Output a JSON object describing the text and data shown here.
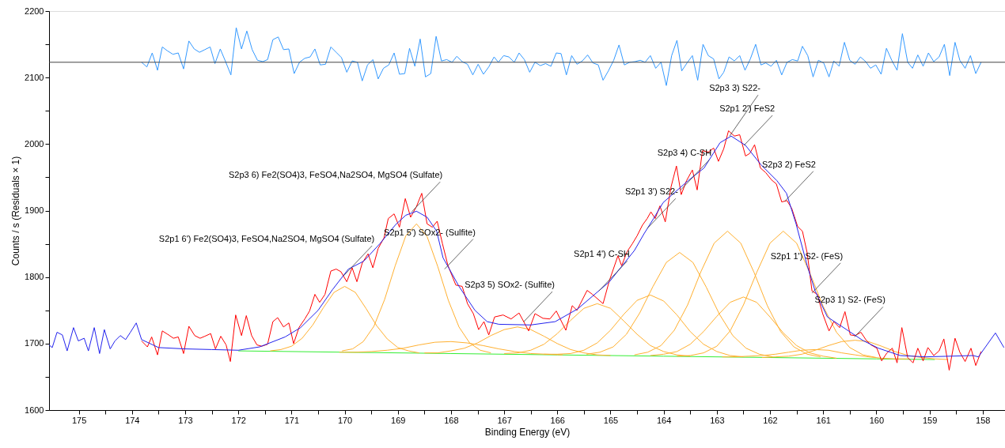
{
  "chart_data": {
    "type": "line",
    "xlabel": "Binding Energy (eV)",
    "ylabel": "Counts / s  (Residuals × 1)",
    "xlim": [
      175.56,
      157.58
    ],
    "ylim": [
      1600,
      2200
    ],
    "xticks": [
      175,
      {
        "value": 174.5,
        "label": null
      },
      174,
      {
        "value": 173.5,
        "label": null
      },
      173,
      {
        "value": 172.5,
        "label": null
      },
      172,
      {
        "value": 171.5,
        "label": null
      },
      171,
      {
        "value": 170.5,
        "label": null
      },
      170,
      {
        "value": 169.5,
        "label": null
      },
      169,
      {
        "value": 168.5,
        "label": null
      },
      168,
      {
        "value": 167.5,
        "label": null
      },
      167,
      {
        "value": 166.5,
        "label": null
      },
      166,
      {
        "value": 165.5,
        "label": null
      },
      165,
      {
        "value": 164.5,
        "label": null
      },
      164,
      {
        "value": 163.5,
        "label": null
      },
      163,
      {
        "value": 162.5,
        "label": null
      },
      162,
      {
        "value": 161.5,
        "label": null
      },
      161,
      {
        "value": 160.5,
        "label": null
      },
      160,
      {
        "value": 159.5,
        "label": null
      },
      159,
      {
        "value": 158.5,
        "label": null
      },
      158
    ],
    "yticks": [
      1600,
      {
        "value": 1650,
        "label": null
      },
      1700,
      {
        "value": 1750,
        "label": null
      },
      1800,
      {
        "value": 1850,
        "label": null
      },
      1900,
      {
        "value": 1950,
        "label": null
      },
      2000,
      {
        "value": 2050,
        "label": null
      },
      2100,
      {
        "value": 2150,
        "label": null
      },
      2200
    ],
    "grid": false,
    "marker": "none",
    "line_style": "solid",
    "ref_lines": [
      {
        "axis": "y",
        "value": 2123,
        "color": "#404040"
      }
    ],
    "series": [
      {
        "type": "line",
        "color": "#33ee33",
        "x": [
          172,
          170,
          168,
          166,
          164,
          162,
          160,
          158.9
        ],
        "values": [
          1689,
          1687,
          1685,
          1683,
          1681,
          1679,
          1677,
          1676
        ]
      },
      {
        "type": "line",
        "color": "#ffb030",
        "x": [
          171.4,
          171.2,
          171.0,
          170.8,
          170.6,
          170.4,
          170.2,
          170.0,
          169.8,
          169.6,
          169.4,
          169.2,
          169.0,
          168.8,
          168.6
        ],
        "values": [
          1689,
          1691,
          1696,
          1708,
          1728,
          1754,
          1777,
          1786,
          1777,
          1753,
          1727,
          1707,
          1694,
          1689,
          1686
        ]
      },
      {
        "type": "line",
        "color": "#ffb030",
        "x": [
          170.05,
          169.85,
          169.65,
          169.45,
          169.25,
          169.05,
          168.85,
          168.65,
          168.45,
          168.25,
          168.05,
          167.85,
          167.65,
          167.45,
          167.25
        ],
        "values": [
          1689,
          1692,
          1703,
          1726,
          1766,
          1817,
          1862,
          1880,
          1861,
          1816,
          1765,
          1725,
          1701,
          1690,
          1686
        ]
      },
      {
        "type": "line",
        "color": "#ffb030",
        "x": [
          170.1,
          169.8,
          169.5,
          169.2,
          168.9,
          168.6,
          168.3,
          168.0,
          167.7,
          167.4,
          167.1,
          166.8,
          166.5,
          166.2,
          165.9
        ],
        "values": [
          1687,
          1687,
          1688,
          1690,
          1693,
          1698,
          1702,
          1703,
          1701,
          1697,
          1692,
          1688,
          1685,
          1684,
          1683
        ]
      },
      {
        "type": "line",
        "color": "#ffb030",
        "x": [
          168.5,
          168.25,
          168.0,
          167.75,
          167.5,
          167.25,
          167.0,
          166.75,
          166.5,
          166.25,
          166.0,
          165.75,
          165.5,
          165.25,
          165.0
        ],
        "values": [
          1686,
          1686,
          1689,
          1693,
          1701,
          1712,
          1721,
          1725,
          1721,
          1711,
          1700,
          1691,
          1686,
          1683,
          1682
        ]
      },
      {
        "type": "line",
        "color": "#ffb030",
        "x": [
          167.0,
          166.75,
          166.5,
          166.25,
          166.0,
          165.75,
          165.5,
          165.25,
          165.0,
          164.75,
          164.5,
          164.25,
          164.0,
          163.75,
          163.5
        ],
        "values": [
          1685,
          1686,
          1690,
          1699,
          1715,
          1735,
          1753,
          1760,
          1753,
          1734,
          1714,
          1697,
          1688,
          1683,
          1681
        ]
      },
      {
        "type": "line",
        "color": "#ffb030",
        "x": [
          166.25,
          166.0,
          165.75,
          165.5,
          165.25,
          165.0,
          164.75,
          164.5,
          164.25,
          164.0,
          163.75,
          163.5,
          163.25,
          163.0,
          162.75,
          162.5
        ],
        "values": [
          1684,
          1684,
          1685,
          1690,
          1701,
          1720,
          1744,
          1765,
          1773,
          1764,
          1743,
          1718,
          1699,
          1688,
          1682,
          1680
        ]
      },
      {
        "type": "line",
        "color": "#ffb030",
        "x": [
          165.45,
          165.2,
          164.95,
          164.7,
          164.45,
          164.2,
          163.95,
          163.7,
          163.45,
          163.2,
          162.95,
          162.7,
          162.45,
          162.2,
          161.95
        ],
        "values": [
          1684,
          1687,
          1695,
          1714,
          1746,
          1786,
          1822,
          1837,
          1822,
          1785,
          1744,
          1712,
          1693,
          1684,
          1680
        ]
      },
      {
        "type": "line",
        "color": "#ffb030",
        "x": [
          164.55,
          164.3,
          164.05,
          163.8,
          163.55,
          163.3,
          163.05,
          162.8,
          162.55,
          162.3,
          162.05,
          161.8,
          161.55,
          161.3,
          161.05
        ],
        "values": [
          1683,
          1687,
          1697,
          1720,
          1758,
          1808,
          1851,
          1869,
          1851,
          1807,
          1757,
          1718,
          1695,
          1684,
          1680
        ]
      },
      {
        "type": "line",
        "color": "#ffb030",
        "x": [
          164.25,
          164.0,
          163.75,
          163.5,
          163.25,
          163.0,
          162.75,
          162.5,
          162.25,
          162.0,
          161.75,
          161.5,
          161.25,
          161.0,
          160.75
        ],
        "values": [
          1682,
          1684,
          1688,
          1699,
          1718,
          1741,
          1762,
          1770,
          1762,
          1740,
          1716,
          1697,
          1686,
          1681,
          1678
        ]
      },
      {
        "type": "line",
        "color": "#ffb030",
        "x": [
          163.75,
          163.5,
          163.25,
          163.0,
          162.75,
          162.5,
          162.25,
          162.0,
          161.75,
          161.5,
          161.25,
          161.0,
          160.75,
          160.5,
          160.25,
          160.0
        ],
        "values": [
          1681,
          1682,
          1686,
          1696,
          1719,
          1758,
          1807,
          1851,
          1869,
          1851,
          1806,
          1756,
          1717,
          1694,
          1683,
          1679
        ]
      },
      {
        "type": "line",
        "color": "#ffb030",
        "x": [
          162.9,
          162.65,
          162.4,
          162.15,
          161.9,
          161.65,
          161.4,
          161.15,
          160.9,
          160.65,
          160.4,
          160.15,
          159.9,
          159.65,
          159.4
        ],
        "values": [
          1680,
          1680,
          1681,
          1682,
          1684,
          1687,
          1690,
          1691,
          1690,
          1686,
          1683,
          1680,
          1678,
          1677,
          1677
        ]
      },
      {
        "type": "line",
        "color": "#ffb030",
        "x": [
          162.15,
          161.9,
          161.65,
          161.4,
          161.15,
          160.9,
          160.65,
          160.4,
          160.15,
          159.9,
          159.65,
          159.4,
          159.15,
          158.9,
          158.65
        ],
        "values": [
          1679,
          1680,
          1681,
          1684,
          1690,
          1697,
          1703,
          1705,
          1703,
          1696,
          1688,
          1682,
          1679,
          1677,
          1676
        ]
      },
      {
        "type": "line",
        "color": "#ff0000",
        "x": [
          173.82,
          173.71,
          173.63,
          173.52,
          173.43,
          173.33,
          173.22,
          173.13,
          173.03,
          172.93,
          172.82,
          172.72,
          172.63,
          172.52,
          172.43,
          172.33,
          172.23,
          172.15,
          172.05,
          171.94,
          171.85,
          171.75,
          171.65,
          171.56,
          171.45,
          171.35,
          171.26,
          171.15,
          171.05,
          170.96,
          170.86,
          170.75,
          170.66,
          170.56,
          170.47,
          170.37,
          170.26,
          170.16,
          170.07,
          169.96,
          169.86,
          169.77,
          169.67,
          169.56,
          169.47,
          169.37,
          169.26,
          169.18,
          169.07,
          168.97,
          168.86,
          168.76,
          168.65,
          168.55,
          168.45,
          168.35,
          168.26,
          168.16,
          168.06,
          167.91,
          167.79,
          167.69,
          167.58,
          167.48,
          167.38,
          167.29,
          167.18,
          167.02,
          166.87,
          166.72,
          166.54,
          166.42,
          166.27,
          166.14,
          166.02,
          165.84,
          165.72,
          165.63,
          165.44,
          165.34,
          165.14,
          165.02,
          164.86,
          164.79,
          164.69,
          164.59,
          164.5,
          164.4,
          164.31,
          164.24,
          164.16,
          164.07,
          163.97,
          163.86,
          163.76,
          163.67,
          163.57,
          163.46,
          163.37,
          163.27,
          163.16,
          163.06,
          162.97,
          162.87,
          162.78,
          162.67,
          162.57,
          162.46,
          162.38,
          162.29,
          162.18,
          162.08,
          161.97,
          161.88,
          161.78,
          161.68,
          161.59,
          161.48,
          161.39,
          161.3,
          161.21,
          161.11,
          161.01,
          160.89,
          160.8,
          160.69,
          160.59,
          160.49,
          160.4,
          160.29,
          160.19,
          160.1,
          159.99,
          159.9,
          159.8,
          159.7,
          159.61,
          159.52,
          159.41,
          159.31,
          159.22,
          159.12,
          159.03,
          158.92,
          158.82,
          158.73,
          158.63,
          158.52,
          158.43,
          158.33,
          158.22,
          158.13,
          158.03
        ],
        "values": [
          1704,
          1695,
          1710,
          1683,
          1719,
          1714,
          1708,
          1710,
          1685,
          1726,
          1712,
          1708,
          1711,
          1715,
          1692,
          1711,
          1698,
          1673,
          1743,
          1712,
          1742,
          1712,
          1698,
          1696,
          1699,
          1733,
          1739,
          1725,
          1731,
          1700,
          1724,
          1737,
          1749,
          1774,
          1762,
          1774,
          1809,
          1812,
          1808,
          1793,
          1814,
          1793,
          1821,
          1835,
          1814,
          1843,
          1859,
          1888,
          1895,
          1875,
          1918,
          1890,
          1906,
          1926,
          1880,
          1875,
          1884,
          1850,
          1818,
          1788,
          1786,
          1760,
          1745,
          1721,
          1733,
          1713,
          1740,
          1743,
          1737,
          1746,
          1719,
          1745,
          1738,
          1737,
          1749,
          1720,
          1757,
          1750,
          1780,
          1774,
          1760,
          1795,
          1832,
          1817,
          1838,
          1850,
          1862,
          1878,
          1888,
          1898,
          1888,
          1907,
          1883,
          1936,
          1967,
          1924,
          1945,
          1961,
          1931,
          1990,
          1988,
          1994,
          1974,
          1993,
          2020,
          2012,
          2014,
          1982,
          1986,
          1999,
          1964,
          1957,
          1946,
          1940,
          1913,
          1915,
          1903,
          1876,
          1869,
          1836,
          1779,
          1774,
          1745,
          1719,
          1733,
          1724,
          1748,
          1713,
          1712,
          1717,
          1705,
          1698,
          1693,
          1674,
          1686,
          1693,
          1671,
          1724,
          1679,
          1671,
          1693,
          1674,
          1694,
          1682,
          1689,
          1707,
          1660,
          1708,
          1687,
          1673,
          1693,
          1667,
          1688
        ]
      },
      {
        "type": "line",
        "color": "#2222ee",
        "x": [
          175.56,
          175.5,
          175.41,
          175.31,
          175.22,
          175.1,
          175.01,
          174.9,
          174.82,
          174.71,
          174.61,
          174.52,
          174.41,
          174.32,
          174.22,
          174.12,
          174.03,
          173.92,
          173.82,
          173.5,
          173.0,
          172.5,
          172.0,
          171.6,
          171.12,
          170.83,
          170.5,
          170.23,
          169.93,
          169.64,
          169.34,
          169.04,
          168.85,
          168.65,
          168.45,
          168.27,
          168.15,
          168.03,
          167.85,
          167.55,
          167.32,
          167.1,
          166.5,
          166.04,
          165.62,
          165.02,
          164.55,
          164.37,
          164.19,
          164.01,
          163.54,
          163.24,
          162.94,
          162.73,
          162.46,
          162.17,
          161.87,
          161.69,
          161.51,
          161.3,
          161.15,
          160.92,
          160.56,
          160.26,
          159.96,
          159.55,
          159.07,
          158.18,
          158.08,
          157.76,
          157.6
        ],
        "values": [
          1698,
          1694,
          1717,
          1713,
          1689,
          1724,
          1704,
          1708,
          1689,
          1724,
          1685,
          1721,
          1692,
          1704,
          1712,
          1706,
          1717,
          1731,
          1706,
          1694,
          1692,
          1691,
          1690,
          1695,
          1710,
          1724,
          1750,
          1781,
          1812,
          1824,
          1850,
          1879,
          1893,
          1899,
          1890,
          1869,
          1829,
          1812,
          1786,
          1750,
          1733,
          1729,
          1728,
          1733,
          1752,
          1793,
          1840,
          1865,
          1888,
          1912,
          1945,
          1964,
          2002,
          2012,
          1998,
          1969,
          1945,
          1926,
          1880,
          1817,
          1779,
          1740,
          1721,
          1705,
          1693,
          1682,
          1680,
          1682,
          1680,
          1716,
          1694
        ]
      },
      {
        "type": "line",
        "color": "#3399ff",
        "x": [
          173.82,
          173.72,
          173.62,
          173.52,
          173.43,
          173.33,
          173.23,
          173.13,
          173.03,
          172.93,
          172.83,
          172.73,
          172.63,
          172.53,
          172.44,
          172.34,
          172.24,
          172.14,
          172.04,
          171.94,
          171.84,
          171.74,
          171.64,
          171.54,
          171.45,
          171.35,
          171.25,
          171.15,
          171.05,
          170.95,
          170.85,
          170.75,
          170.65,
          170.56,
          170.46,
          170.36,
          170.26,
          170.16,
          170.06,
          169.96,
          169.86,
          169.76,
          169.67,
          169.57,
          169.47,
          169.37,
          169.27,
          169.17,
          169.07,
          168.97,
          168.87,
          168.78,
          168.68,
          168.58,
          168.48,
          168.38,
          168.28,
          168.18,
          168.08,
          167.98,
          167.89,
          167.79,
          167.69,
          167.59,
          167.49,
          167.39,
          167.29,
          167.19,
          167.11,
          167.01,
          166.91,
          166.81,
          166.72,
          166.62,
          166.52,
          166.42,
          166.32,
          166.22,
          166.12,
          166.02,
          165.93,
          165.83,
          165.73,
          165.63,
          165.53,
          165.43,
          165.33,
          165.23,
          165.14,
          165.04,
          164.94,
          164.84,
          164.74,
          164.64,
          164.54,
          164.44,
          164.35,
          164.25,
          164.15,
          164.05,
          163.95,
          163.85,
          163.75,
          163.66,
          163.56,
          163.46,
          163.36,
          163.26,
          163.16,
          163.06,
          162.96,
          162.87,
          162.77,
          162.67,
          162.57,
          162.47,
          162.37,
          162.27,
          162.17,
          162.08,
          161.98,
          161.88,
          161.78,
          161.68,
          161.58,
          161.48,
          161.39,
          161.29,
          161.19,
          161.09,
          160.99,
          160.89,
          160.8,
          160.7,
          160.6,
          160.5,
          160.4,
          160.3,
          160.2,
          160.11,
          160.01,
          159.91,
          159.81,
          159.71,
          159.61,
          159.51,
          159.41,
          159.32,
          159.22,
          159.12,
          159.02,
          158.92,
          158.82,
          158.72,
          158.62,
          158.52,
          158.43,
          158.33,
          158.23,
          158.13,
          158.03
        ],
        "values": [
          2123,
          2116,
          2137,
          2111,
          2146,
          2140,
          2135,
          2137,
          2113,
          2155,
          2143,
          2138,
          2142,
          2146,
          2121,
          2143,
          2124,
          2104,
          2175,
          2143,
          2170,
          2142,
          2126,
          2124,
          2127,
          2157,
          2161,
          2142,
          2143,
          2106,
          2123,
          2129,
          2131,
          2143,
          2119,
          2120,
          2146,
          2138,
          2130,
          2108,
          2125,
          2123,
          2095,
          2119,
          2127,
          2098,
          2114,
          2119,
          2137,
          2105,
          2106,
          2144,
          2117,
          2158,
          2101,
          2106,
          2162,
          2125,
          2127,
          2123,
          2132,
          2124,
          2120,
          2104,
          2120,
          2105,
          2116,
          2131,
          2123,
          2133,
          2131,
          2123,
          2137,
          2127,
          2108,
          2123,
          2118,
          2121,
          2117,
          2137,
          2136,
          2104,
          2133,
          2120,
          2125,
          2134,
          2122,
          2119,
          2096,
          2110,
          2126,
          2149,
          2119,
          2123,
          2124,
          2126,
          2123,
          2133,
          2114,
          2123,
          2088,
          2133,
          2156,
          2110,
          2122,
          2133,
          2096,
          2150,
          2133,
          2128,
          2098,
          2108,
          2131,
          2125,
          2133,
          2111,
          2128,
          2150,
          2119,
          2122,
          2117,
          2126,
          2104,
          2123,
          2127,
          2125,
          2147,
          2133,
          2101,
          2126,
          2122,
          2101,
          2125,
          2117,
          2153,
          2126,
          2120,
          2131,
          2124,
          2114,
          2119,
          2105,
          2144,
          2126,
          2111,
          2166,
          2123,
          2114,
          2134,
          2117,
          2137,
          2124,
          2131,
          2150,
          2103,
          2153,
          2126,
          2114,
          2133,
          2106,
          2123
        ]
      }
    ],
    "annotations": [
      {
        "text": "S2p3 6) Fe2(SO4)3, FeSO4,Na2SO4, MgSO4 (Sulfate)",
        "x": 168.74,
        "y": 1898
      },
      {
        "text": "S2p1 6') Fe2(SO4)3, FeSO4,Na2SO4, MgSO4 (Sulfate)",
        "x": 170.02,
        "y": 1802
      },
      {
        "text": "S2p1 5') SOx2- (Sulfite)",
        "x": 168.12,
        "y": 1812
      },
      {
        "text": "S2p3  5) SOx2- (Sulfite)",
        "x": 166.63,
        "y": 1733
      },
      {
        "text": "S2p1 4') C-SH",
        "x": 165.22,
        "y": 1779
      },
      {
        "text": "S2p1 3') S22-",
        "x": 164.31,
        "y": 1873
      },
      {
        "text": "S2p3 4) C-SH",
        "x": 163.68,
        "y": 1931
      },
      {
        "text": "S2p3 3) S22-",
        "x": 162.76,
        "y": 2012
      },
      {
        "text": "S2p1 2') FeS2",
        "x": 162.49,
        "y": 1998
      },
      {
        "text": "S2p3 2) FeS2",
        "x": 161.72,
        "y": 1914
      },
      {
        "text": "S2p1 1') S2- (FeS)",
        "x": 161.21,
        "y": 1776
      },
      {
        "text": "S2p3 1) S2- (FeS)",
        "x": 160.41,
        "y": 1710
      }
    ]
  }
}
